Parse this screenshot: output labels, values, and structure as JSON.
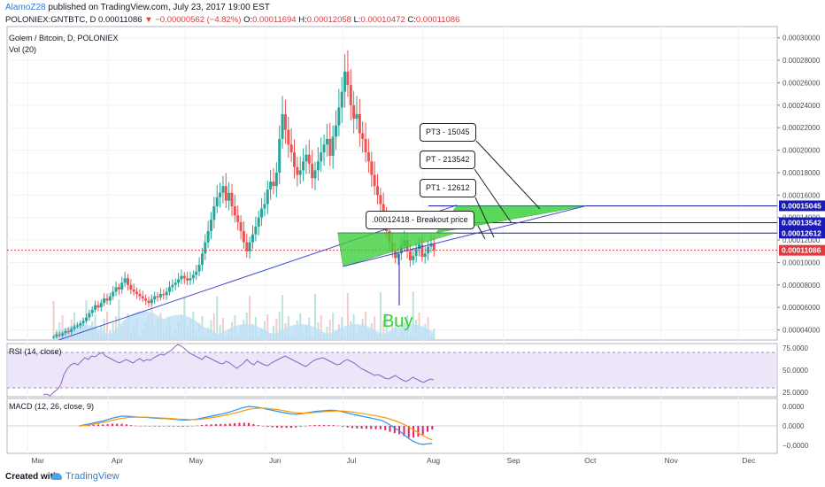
{
  "header": {
    "author": "AlamoZ28",
    "published": "published on TradingView.com, July 23, 2017 19:00 EST",
    "symbol_line": "POLONIEX:GNTBTC, D",
    "last": "0.00011086",
    "change_icon": "down-triangle-icon",
    "change": "−0.00000562 (−4.82%)",
    "o_label": "O:",
    "o_val": "0.00011694",
    "h_label": "H:",
    "h_val": "0.00012058",
    "l_label": "L:",
    "l_val": "0.00010472",
    "c_label": "C:",
    "c_val": "0.00011086"
  },
  "legend": {
    "main": "Golem / Bitcoin, D, POLONIEX",
    "vol": "Vol (20)",
    "rsi": "RSI (14, close)",
    "macd": "MACD (12, 26, close, 9)"
  },
  "annotations": {
    "breakout": ".00012418 - Breakout price",
    "pt1": "PT1 - 12612",
    "pt": "PT - 213542",
    "pt3": "PT3 - 15045",
    "buy": "Buy"
  },
  "footer": {
    "created": "Created with",
    "brand": "TradingView",
    "brand_icon": "tradingview-cloud-icon"
  },
  "colors": {
    "up": "#26a69a",
    "down": "#ef5350",
    "accent_green": "#3ed23e",
    "trend_blue": "#3f48cc",
    "rsi_band": "#e6dcf5",
    "macd_line": "#2196f3",
    "signal_line": "#ff9800",
    "hist": "#e91e63",
    "volume_ma": "#bde0f6",
    "current_price": "#e0393e",
    "level_blue": "#1a1ab8"
  },
  "chart_data": {
    "type": "candlestick",
    "price_ticks": [
      "0.00030000",
      "0.00028000",
      "0.00026000",
      "0.00024000",
      "0.00022000",
      "0.00020000",
      "0.00018000",
      "0.00016000",
      "0.00014000",
      "0.00012000",
      "0.00010000",
      "0.00008000",
      "0.00006000",
      "0.00004000"
    ],
    "price_labels": [
      {
        "text": "0.00015045",
        "value": 0.00015045,
        "color": "#1a1ab8"
      },
      {
        "text": "0.00013542",
        "value": 0.00013542,
        "color": "#1a1ab8"
      },
      {
        "text": "0.00012612",
        "value": 0.00012612,
        "color": "#1a1ab8"
      },
      {
        "text": "0.00011086",
        "value": 0.00011086,
        "color": "#e0393e"
      }
    ],
    "price_range": [
      3.1e-05,
      0.00031
    ],
    "rsi_ticks": [
      "75.0000",
      "50.0000",
      "25.0000"
    ],
    "rsi_range": [
      20,
      80
    ],
    "rsi_band": [
      30,
      70
    ],
    "macd_ticks": [
      "0.0000",
      "0.0000",
      "−0.0000"
    ],
    "months": [
      "Mar",
      "Apr",
      "May",
      "Jun",
      "Jul",
      "Aug",
      "Sep",
      "Oct",
      "Nov",
      "Dec"
    ],
    "time_axis_units": "days since Mar 1 2017",
    "month_days": [
      0,
      31,
      61,
      92,
      122,
      153,
      184,
      214,
      245,
      275
    ],
    "time_range": [
      -8,
      290
    ],
    "first_candle_day": 10,
    "closes": [
      3.4e-05,
      3.6e-05,
      3.5e-05,
      3.7e-05,
      3.9e-05,
      3.8e-05,
      4.1e-05,
      4.3e-05,
      4.4e-05,
      4.6e-05,
      4.8e-05,
      5.1e-05,
      5.5e-05,
      5.8e-05,
      6.2e-05,
      6e-05,
      6.4e-05,
      6.8e-05,
      6.6e-05,
      7e-05,
      7.4e-05,
      7.8e-05,
      7.6e-05,
      8.2e-05,
      8.6e-05,
      8e-05,
      7.6e-05,
      7.4e-05,
      7.2e-05,
      7e-05,
      6.8e-05,
      6.6e-05,
      6.4e-05,
      6.7e-05,
      7e-05,
      6.9e-05,
      7.2e-05,
      7.1e-05,
      7.4e-05,
      7.8e-05,
      8e-05,
      8.2e-05,
      8.5e-05,
      8.8e-05,
      8.6e-05,
      8.4e-05,
      8.6e-05,
      8.9e-05,
      9.2e-05,
      9.8e-05,
      0.000108,
      0.000118,
      0.000128,
      0.000138,
      0.00015,
      0.000158,
      0.000162,
      0.000168,
      0.000155,
      0.000162,
      0.00015,
      0.000142,
      0.000136,
      0.000128,
      0.000118,
      0.00011,
      0.000118,
      0.000125,
      0.000132,
      0.00014,
      0.000148,
      0.000152,
      0.000165,
      0.000172,
      0.000168,
      0.00018,
      0.00021,
      0.000232,
      0.000218,
      0.000205,
      0.000198,
      0.000185,
      0.000178,
      0.000182,
      0.00019,
      0.000196,
      0.000188,
      0.000175,
      0.000182,
      0.00019,
      0.000198,
      0.000205,
      0.00021,
      0.000195,
      0.000212,
      0.000222,
      0.000238,
      0.000252,
      0.00027,
      0.000258,
      0.00024,
      0.000228,
      0.000232,
      0.000215,
      0.00021,
      0.000198,
      0.00019,
      0.000178,
      0.000168,
      0.00016,
      0.000152,
      0.00014,
      0.000128,
      0.000118,
      0.00011,
      0.000104,
      0.000108,
      0.000115,
      0.00012,
      0.00011,
      0.000102,
      0.000106,
      0.000112,
      0.000116,
      0.000105,
      0.000108,
      0.000114,
      0.000117,
      0.000111
    ],
    "rsi": [
      22,
      23,
      21,
      25,
      28,
      33,
      45,
      52,
      56,
      58,
      56,
      60,
      64,
      62,
      66,
      65,
      68,
      70,
      66,
      64,
      62,
      60,
      58,
      60,
      62,
      60,
      58,
      61,
      63,
      60,
      62,
      61,
      64,
      66,
      68,
      67,
      70,
      72,
      76,
      79,
      77,
      74,
      70,
      68,
      66,
      64,
      62,
      66,
      64,
      62,
      60,
      58,
      57,
      60,
      58,
      55,
      52,
      55,
      58,
      62,
      58,
      56,
      60,
      58,
      56,
      55,
      58,
      60,
      62,
      64,
      66,
      64,
      62,
      60,
      58,
      56,
      54,
      57,
      60,
      62,
      63,
      64,
      62,
      60,
      58,
      56,
      57,
      60,
      62,
      60,
      58,
      55,
      52,
      50,
      48,
      46,
      44,
      45,
      43,
      41,
      40,
      42,
      44,
      41,
      39,
      37,
      39,
      42,
      40,
      38,
      36,
      38,
      40,
      39
    ],
    "macd": [
      0.0,
      0.05,
      0.1,
      0.15,
      0.2,
      0.25,
      0.32,
      0.4,
      0.45,
      0.5,
      0.5,
      0.48,
      0.46,
      0.45,
      0.44,
      0.42,
      0.4,
      0.38,
      0.38,
      0.36,
      0.34,
      0.32,
      0.3,
      0.3,
      0.32,
      0.35,
      0.4,
      0.45,
      0.5,
      0.55,
      0.6,
      0.65,
      0.72,
      0.8,
      0.88,
      0.95,
      1.0,
      0.98,
      0.95,
      0.9,
      0.85,
      0.8,
      0.75,
      0.7,
      0.66,
      0.62,
      0.6,
      0.62,
      0.66,
      0.7,
      0.74,
      0.76,
      0.78,
      0.8,
      0.8,
      0.78,
      0.72,
      0.66,
      0.6,
      0.55,
      0.5,
      0.45,
      0.4,
      0.35,
      0.3,
      0.2,
      0.05,
      -0.1,
      -0.25,
      -0.45,
      -0.65,
      -0.8,
      -0.9,
      -0.95,
      -0.92,
      -0.9
    ],
    "signal": [
      0.0,
      0.02,
      0.05,
      0.09,
      0.13,
      0.18,
      0.23,
      0.29,
      0.34,
      0.39,
      0.42,
      0.44,
      0.45,
      0.45,
      0.45,
      0.44,
      0.43,
      0.41,
      0.4,
      0.39,
      0.37,
      0.35,
      0.34,
      0.33,
      0.32,
      0.33,
      0.35,
      0.38,
      0.42,
      0.46,
      0.5,
      0.55,
      0.6,
      0.66,
      0.72,
      0.79,
      0.85,
      0.89,
      0.91,
      0.91,
      0.9,
      0.87,
      0.84,
      0.8,
      0.76,
      0.72,
      0.68,
      0.66,
      0.66,
      0.67,
      0.69,
      0.71,
      0.73,
      0.75,
      0.76,
      0.77,
      0.76,
      0.74,
      0.71,
      0.68,
      0.64,
      0.6,
      0.56,
      0.52,
      0.47,
      0.42,
      0.35,
      0.27,
      0.18,
      0.07,
      -0.05,
      -0.2,
      -0.35,
      -0.5,
      -0.62,
      -0.72
    ]
  }
}
